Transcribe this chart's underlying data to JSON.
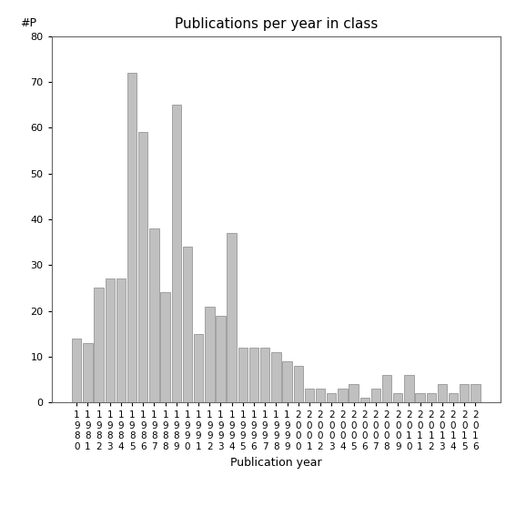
{
  "title": "Publications per year in class",
  "xlabel": "Publication year",
  "ylabel": "#P",
  "bar_color": "#c0c0c0",
  "bar_edgecolor": "#888888",
  "ylim": [
    0,
    80
  ],
  "yticks": [
    0,
    10,
    20,
    30,
    40,
    50,
    60,
    70,
    80
  ],
  "years": [
    "1980",
    "1981",
    "1982",
    "1983",
    "1984",
    "1985",
    "1986",
    "1987",
    "1988",
    "1989",
    "1990",
    "1991",
    "1992",
    "1993",
    "1994",
    "1995",
    "1996",
    "1997",
    "1998",
    "1999",
    "2000",
    "2001",
    "2002",
    "2003",
    "2004",
    "2005",
    "2006",
    "2007",
    "2008",
    "2009",
    "2010",
    "2011",
    "2012",
    "2013",
    "2014",
    "2015",
    "2016"
  ],
  "values": [
    14,
    13,
    25,
    27,
    27,
    72,
    59,
    38,
    24,
    65,
    34,
    15,
    21,
    19,
    37,
    12,
    12,
    12,
    11,
    9,
    8,
    3,
    3,
    2,
    3,
    4,
    1,
    3,
    6,
    2,
    6,
    2,
    2,
    4,
    2,
    4,
    4
  ],
  "background_color": "#ffffff",
  "tick_label_fontsize": 7.5,
  "title_fontsize": 11,
  "axis_label_fontsize": 9
}
